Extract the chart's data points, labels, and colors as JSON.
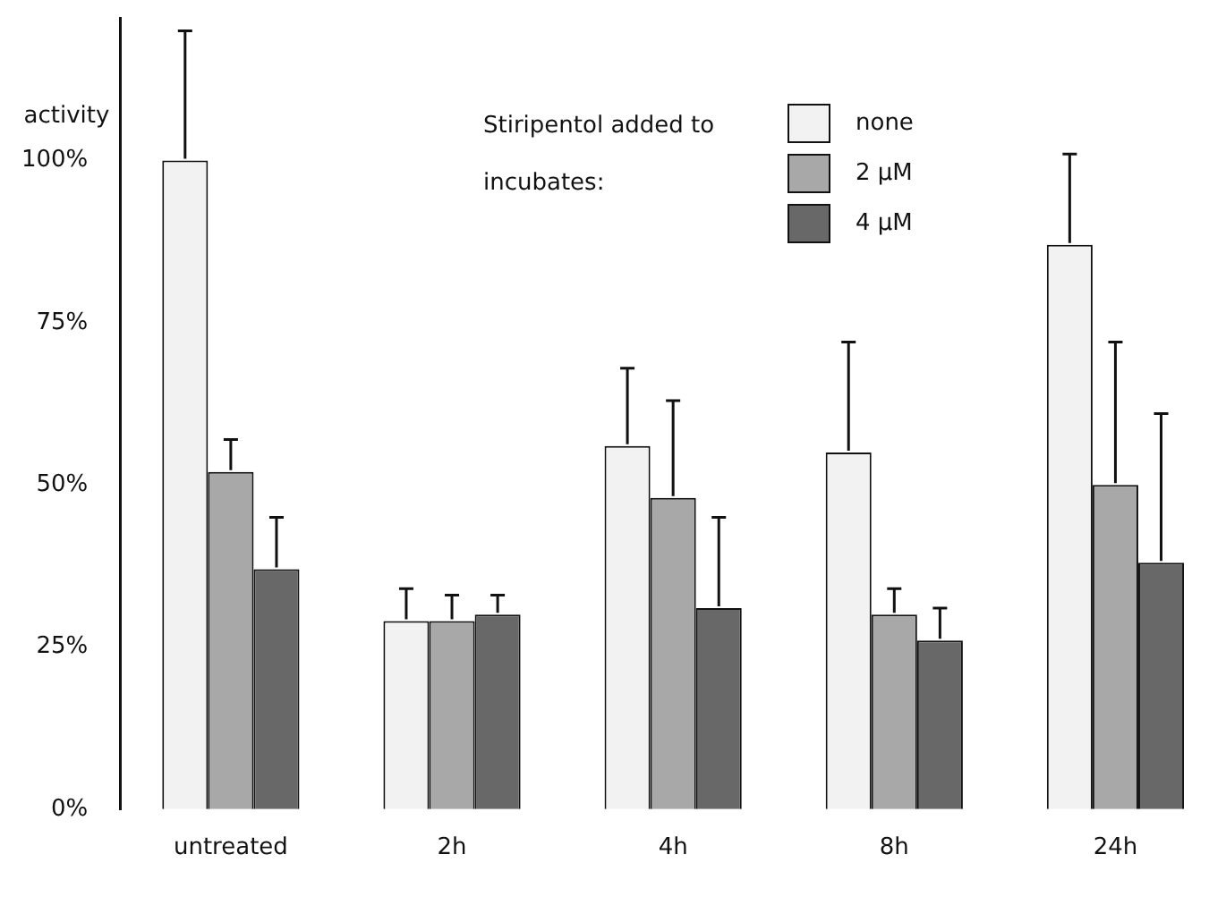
{
  "chart_data": {
    "type": "bar",
    "ylabel": "activity",
    "legend_title": "Stiripentol added to incubates:",
    "categories": [
      "untreated",
      "2h",
      "4h",
      "8h",
      "24h"
    ],
    "series": [
      {
        "name": "none",
        "color": "#f2f2f2",
        "values": [
          100,
          29,
          56,
          55,
          87
        ],
        "errors": [
          [
            100,
            120
          ],
          [
            29,
            34
          ],
          [
            56,
            68
          ],
          [
            55,
            72
          ],
          [
            87,
            101
          ]
        ]
      },
      {
        "name": "2 µM",
        "color": "#a8a8a8",
        "values": [
          52,
          29,
          48,
          30,
          50
        ],
        "errors": [
          [
            52,
            57
          ],
          [
            29,
            33
          ],
          [
            48,
            63
          ],
          [
            30,
            34
          ],
          [
            50,
            72
          ]
        ]
      },
      {
        "name": "4 µM",
        "color": "#686868",
        "values": [
          37,
          30,
          31,
          26,
          38
        ],
        "errors": [
          [
            37,
            45
          ],
          [
            30,
            33
          ],
          [
            31,
            45
          ],
          [
            26,
            31
          ],
          [
            38,
            61
          ]
        ]
      }
    ],
    "ylim": [
      0,
      122
    ],
    "yticks": [
      {
        "value": 0,
        "label": "0%"
      },
      {
        "value": 25,
        "label": "25%"
      },
      {
        "value": 50,
        "label": "50%"
      },
      {
        "value": 75,
        "label": "75%"
      },
      {
        "value": 100,
        "label": "100%"
      }
    ],
    "grid": false,
    "legend": "top right"
  }
}
